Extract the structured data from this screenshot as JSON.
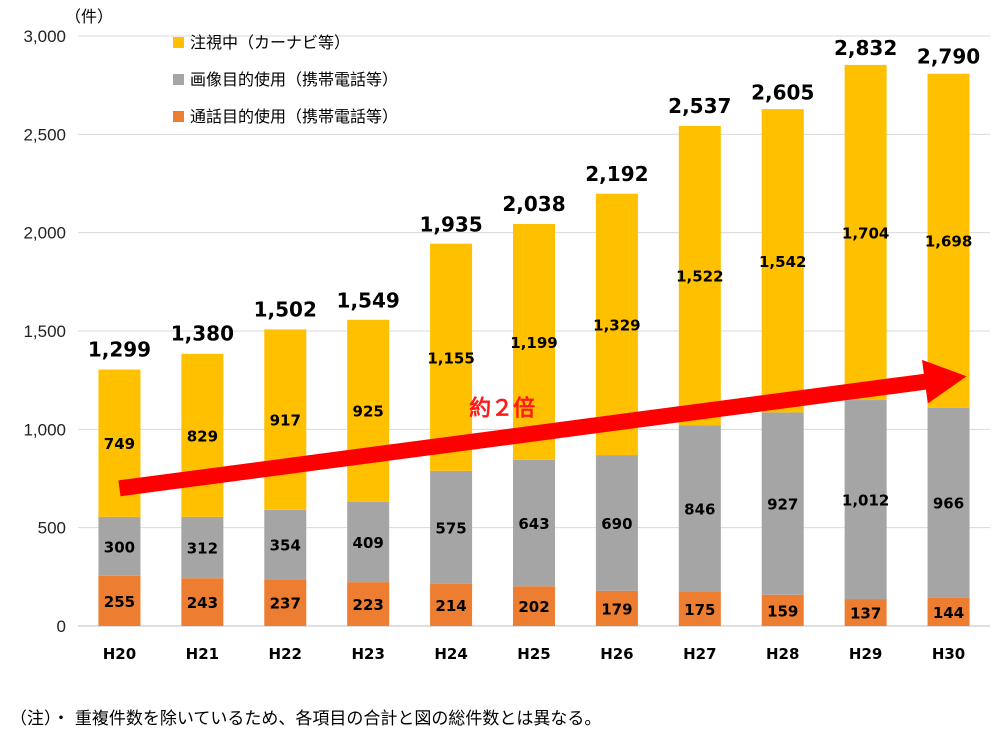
{
  "chart_data": {
    "type": "bar",
    "stacked": true,
    "unit_label": "（件）",
    "categories": [
      "H20",
      "H21",
      "H22",
      "H23",
      "H24",
      "H25",
      "H26",
      "H27",
      "H28",
      "H29",
      "H30"
    ],
    "series": [
      {
        "name": "通話目的使用（携帯電話等）",
        "color": "#ed7d31",
        "values": [
          255,
          243,
          237,
          223,
          214,
          202,
          179,
          175,
          159,
          137,
          144
        ]
      },
      {
        "name": "画像目的使用（携帯電話等）",
        "color": "#a5a5a5",
        "values": [
          300,
          312,
          354,
          409,
          575,
          643,
          690,
          846,
          927,
          1012,
          966
        ]
      },
      {
        "name": "注視中（カーナビ等）",
        "color": "#ffc000",
        "values": [
          749,
          829,
          917,
          925,
          1155,
          1199,
          1329,
          1522,
          1542,
          1704,
          1698
        ]
      }
    ],
    "totals": [
      1299,
      1380,
      1502,
      1549,
      1935,
      2038,
      2192,
      2537,
      2605,
      2832,
      2790
    ],
    "ylim": [
      0,
      3000
    ],
    "yticks": [
      0,
      500,
      1000,
      1500,
      2000,
      2500,
      3000
    ],
    "ytick_labels": [
      "0",
      "500",
      "1,000",
      "1,500",
      "2,000",
      "2,500",
      "3,000"
    ],
    "grid": true,
    "legend_position": "top-left",
    "legend_order": [
      "注視中（カーナビ等）",
      "画像目的使用（携帯電話等）",
      "通話目的使用（携帯電話等）"
    ],
    "annotation": {
      "text": "約２倍",
      "color": "#ff0000"
    }
  },
  "footnote": "（注）・ 重複件数を除いているため、各項目の合計と図の総件数とは異なる。"
}
